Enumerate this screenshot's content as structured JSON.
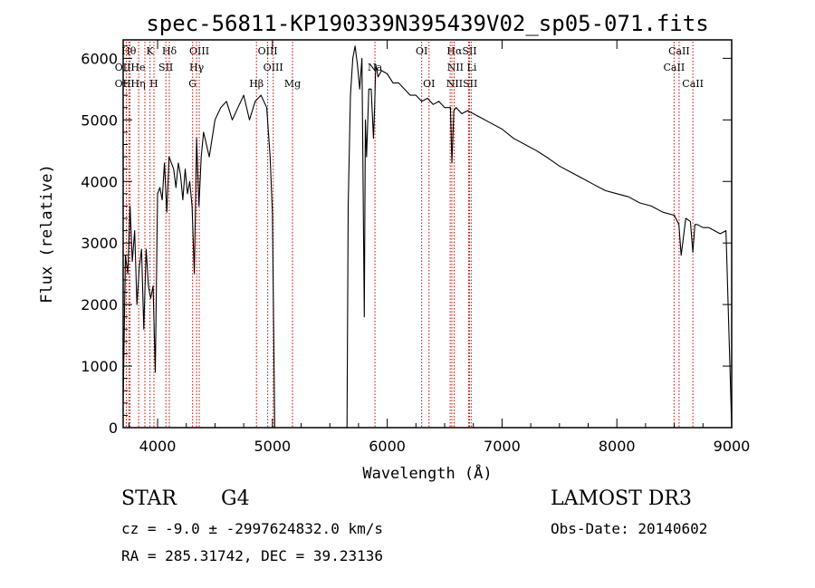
{
  "chart_data": {
    "type": "line",
    "title": "spec-56811-KP190339N395439V02_sp05-071.fits",
    "xlabel": "Wavelength (Å)",
    "ylabel": "Flux (relative)",
    "xlim": [
      3700,
      9000
    ],
    "ylim": [
      0,
      6300
    ],
    "xticks": [
      4000,
      5000,
      6000,
      7000,
      8000,
      9000
    ],
    "yticks": [
      0,
      1000,
      2000,
      3000,
      4000,
      5000,
      6000
    ],
    "series": [
      {
        "name": "flux",
        "x": [
          3700,
          3720,
          3740,
          3760,
          3780,
          3800,
          3820,
          3840,
          3860,
          3880,
          3900,
          3920,
          3940,
          3960,
          3980,
          4000,
          4020,
          4040,
          4060,
          4080,
          4100,
          4120,
          4140,
          4160,
          4180,
          4200,
          4220,
          4240,
          4260,
          4280,
          4300,
          4320,
          4340,
          4360,
          4380,
          4400,
          4450,
          4500,
          4550,
          4600,
          4650,
          4700,
          4750,
          4800,
          4850,
          4900,
          4950,
          4980,
          5000,
          5020,
          5050,
          5100,
          5200,
          5300,
          5400,
          5500,
          5600,
          5650,
          5660,
          5680,
          5700,
          5720,
          5740,
          5760,
          5780,
          5800,
          5810,
          5820,
          5840,
          5860,
          5880,
          5890,
          5900,
          5920,
          5950,
          6000,
          6050,
          6100,
          6150,
          6200,
          6250,
          6300,
          6350,
          6400,
          6450,
          6500,
          6550,
          6563,
          6580,
          6600,
          6650,
          6700,
          6750,
          6800,
          6900,
          7000,
          7100,
          7200,
          7300,
          7400,
          7500,
          7600,
          7700,
          7800,
          7900,
          8000,
          8100,
          8200,
          8300,
          8400,
          8500,
          8540,
          8560,
          8600,
          8640,
          8662,
          8680,
          8700,
          8750,
          8800,
          8850,
          8900,
          8950,
          9000
        ],
        "y": [
          400,
          2800,
          2500,
          3600,
          2700,
          3200,
          2000,
          2600,
          2900,
          1600,
          2900,
          2300,
          2100,
          2300,
          900,
          3800,
          3900,
          3700,
          4300,
          3500,
          4400,
          4300,
          4200,
          3900,
          4300,
          4100,
          3700,
          4200,
          3800,
          4000,
          3600,
          2500,
          4700,
          3600,
          4400,
          4800,
          4400,
          5000,
          5200,
          5300,
          5000,
          5200,
          5400,
          5000,
          5300,
          5400,
          5200,
          4400,
          3500,
          0,
          0,
          0,
          0,
          0,
          0,
          0,
          0,
          0,
          3600,
          5400,
          6000,
          6200,
          5900,
          5500,
          6000,
          1800,
          5000,
          4400,
          5500,
          5500,
          4700,
          5200,
          5900,
          5700,
          5800,
          5750,
          5600,
          5600,
          5500,
          5400,
          5400,
          5300,
          5350,
          5250,
          5300,
          5200,
          5200,
          4300,
          5150,
          5200,
          5100,
          5150,
          5100,
          5050,
          4950,
          4850,
          4700,
          4600,
          4500,
          4380,
          4250,
          4150,
          4050,
          3950,
          3850,
          3800,
          3750,
          3650,
          3600,
          3500,
          3450,
          3300,
          2800,
          3400,
          3350,
          2850,
          3300,
          3300,
          3250,
          3250,
          3200,
          3150,
          3200,
          0
        ]
      }
    ],
    "reference_lines": [
      {
        "label": "OII",
        "x": 3727
      },
      {
        "label": "Hθ",
        "x": 3750
      },
      {
        "label": "OII",
        "x": 3760
      },
      {
        "label": "Hη",
        "x": 3835
      },
      {
        "label": "He",
        "x": 3889
      },
      {
        "label": "K",
        "x": 3934
      },
      {
        "label": "H",
        "x": 3968
      },
      {
        "label": "Hδ",
        "x": 4102
      },
      {
        "label": "SII",
        "x": 4072
      },
      {
        "label": "Hγ",
        "x": 4340
      },
      {
        "label": "OIII",
        "x": 4363
      },
      {
        "label": "G",
        "x": 4305
      },
      {
        "label": "Hβ",
        "x": 4861
      },
      {
        "label": "OIII",
        "x": 4959
      },
      {
        "label": "OIII",
        "x": 5007
      },
      {
        "label": "Mg",
        "x": 5175
      },
      {
        "label": "Na",
        "x": 5893
      },
      {
        "label": "OI",
        "x": 6300
      },
      {
        "label": "OI",
        "x": 6364
      },
      {
        "label": "NII",
        "x": 6548
      },
      {
        "label": "Hα",
        "x": 6563
      },
      {
        "label": "NII",
        "x": 6583
      },
      {
        "label": "Li",
        "x": 6708
      },
      {
        "label": "SII",
        "x": 6716
      },
      {
        "label": "SII",
        "x": 6731
      },
      {
        "label": "CaII",
        "x": 8498
      },
      {
        "label": "CaII",
        "x": 8542
      },
      {
        "label": "CaII",
        "x": 8662
      }
    ],
    "line_labels": [
      {
        "text": "Hθ",
        "x": 3750,
        "row": 0
      },
      {
        "text": "K",
        "x": 3934,
        "row": 0
      },
      {
        "text": "Hδ",
        "x": 4102,
        "row": 0
      },
      {
        "text": "OIII",
        "x": 4363,
        "row": 0
      },
      {
        "text": "OIII",
        "x": 4959,
        "row": 0
      },
      {
        "text": "OI",
        "x": 6300,
        "row": 0
      },
      {
        "text": "HαSII",
        "x": 6650,
        "row": 0
      },
      {
        "text": "CaII",
        "x": 8542,
        "row": 0
      },
      {
        "text": "OIIHe",
        "x": 3760,
        "row": 1
      },
      {
        "text": "SII",
        "x": 4072,
        "row": 1
      },
      {
        "text": "Hγ",
        "x": 4340,
        "row": 1
      },
      {
        "text": "OIII",
        "x": 5007,
        "row": 1
      },
      {
        "text": "Na",
        "x": 5893,
        "row": 1
      },
      {
        "text": "NII Li",
        "x": 6650,
        "row": 1
      },
      {
        "text": "CaII",
        "x": 8498,
        "row": 1
      },
      {
        "text": "OIIHη",
        "x": 3760,
        "row": 2
      },
      {
        "text": "H",
        "x": 3968,
        "row": 2
      },
      {
        "text": "G",
        "x": 4305,
        "row": 2
      },
      {
        "text": "Hβ",
        "x": 4861,
        "row": 2
      },
      {
        "text": "Mg",
        "x": 5175,
        "row": 2
      },
      {
        "text": "OI",
        "x": 6364,
        "row": 2
      },
      {
        "text": "NIISII",
        "x": 6650,
        "row": 2
      },
      {
        "text": "CaII",
        "x": 8662,
        "row": 2
      }
    ],
    "colors": {
      "spectrum": "#000000",
      "reference": "#cc0000"
    }
  },
  "info": {
    "object_class": "STAR",
    "subclass": "G4",
    "survey": "LAMOST DR3",
    "redshift_line": "cz = -9.0 ± -2997624832.0 km/s",
    "obs_date": "Obs-Date: 20140602",
    "coords": "RA = 285.31742, DEC =  39.23136"
  }
}
